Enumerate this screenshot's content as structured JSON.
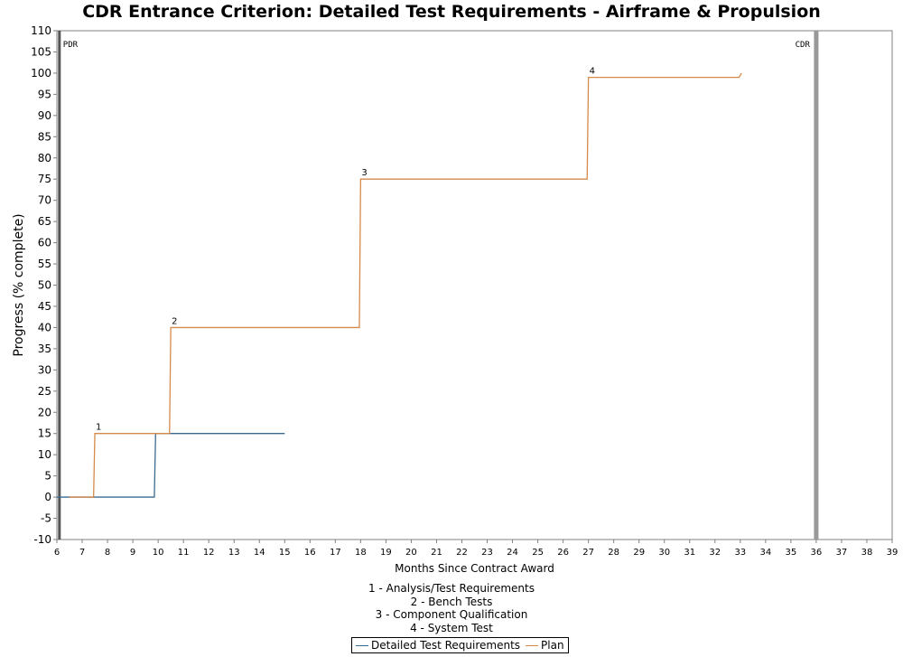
{
  "chart_data": {
    "type": "line",
    "title": "CDR Entrance Criterion: Detailed Test Requirements - Airframe & Propulsion",
    "xlabel": "Months Since Contract Award",
    "ylabel": "Progress (% complete)",
    "xlim": [
      6,
      39
    ],
    "ylim": [
      -10,
      110
    ],
    "x_ticks": [
      6,
      7,
      8,
      9,
      10,
      11,
      12,
      13,
      14,
      15,
      16,
      17,
      18,
      19,
      20,
      21,
      22,
      23,
      24,
      25,
      26,
      27,
      28,
      29,
      30,
      31,
      32,
      33,
      34,
      35,
      36,
      37,
      38,
      39
    ],
    "y_ticks": [
      -10,
      -5,
      0,
      5,
      10,
      15,
      20,
      25,
      30,
      35,
      40,
      45,
      50,
      55,
      60,
      65,
      70,
      75,
      80,
      85,
      90,
      95,
      100,
      105,
      110
    ],
    "grid": false,
    "legend_position": "bottom",
    "series": [
      {
        "name": "Detailed Test Requirements",
        "color": "#3b6a8f",
        "step": true,
        "points": [
          [
            6,
            0
          ],
          [
            9.85,
            0
          ],
          [
            9.9,
            15
          ],
          [
            15,
            15
          ]
        ]
      },
      {
        "name": "Plan",
        "color": "#d68a4a",
        "step": true,
        "points": [
          [
            6.5,
            0
          ],
          [
            7.45,
            0
          ],
          [
            7.5,
            15
          ],
          [
            10.45,
            15
          ],
          [
            10.5,
            40
          ],
          [
            17.95,
            40
          ],
          [
            18,
            75
          ],
          [
            26.95,
            75
          ],
          [
            27,
            99
          ],
          [
            32.95,
            99
          ],
          [
            33.05,
            100
          ]
        ]
      }
    ],
    "milestones": [
      {
        "label": "PDR",
        "x": 6.1,
        "color": "#555555"
      },
      {
        "label": "CDR",
        "x": 36,
        "color": "#999999"
      }
    ],
    "annotations": [
      {
        "text": "1",
        "x": 7.5,
        "y": 15
      },
      {
        "text": "2",
        "x": 10.5,
        "y": 40
      },
      {
        "text": "3",
        "x": 18,
        "y": 75
      },
      {
        "text": "4",
        "x": 27,
        "y": 99
      }
    ],
    "notes": [
      "1 - Analysis/Test Requirements",
      "2 - Bench Tests",
      "3 - Component Qualification",
      "4 - System Test"
    ]
  }
}
